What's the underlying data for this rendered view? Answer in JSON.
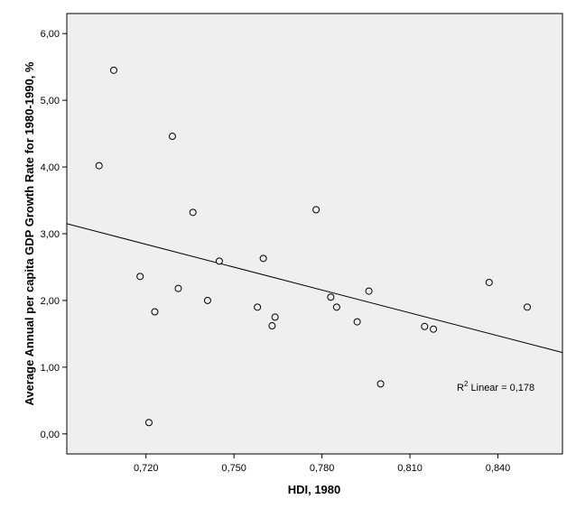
{
  "chart_data": {
    "type": "scatter",
    "xlabel": "HDI, 1980",
    "ylabel": "Average Annual per capita GDP Growth Rate for 1980-1990, %",
    "xlim": [
      0.693,
      0.862
    ],
    "ylim": [
      -0.3,
      6.3
    ],
    "x_ticks": [
      0.72,
      0.75,
      0.78,
      0.81,
      0.84
    ],
    "x_tick_labels": [
      "0,720",
      "0,750",
      "0,780",
      "0,810",
      "0,840"
    ],
    "y_ticks": [
      0,
      1,
      2,
      3,
      4,
      5,
      6
    ],
    "y_tick_labels": [
      "0,00",
      "1,00",
      "2,00",
      "3,00",
      "4,00",
      "5,00",
      "6,00"
    ],
    "grid": false,
    "plot_background": "#efefef",
    "points": [
      {
        "x": 0.704,
        "y": 4.02
      },
      {
        "x": 0.709,
        "y": 5.45
      },
      {
        "x": 0.718,
        "y": 2.36
      },
      {
        "x": 0.721,
        "y": 0.17
      },
      {
        "x": 0.723,
        "y": 1.83
      },
      {
        "x": 0.729,
        "y": 4.46
      },
      {
        "x": 0.731,
        "y": 2.18
      },
      {
        "x": 0.736,
        "y": 3.32
      },
      {
        "x": 0.741,
        "y": 2.0
      },
      {
        "x": 0.745,
        "y": 2.59
      },
      {
        "x": 0.758,
        "y": 1.9
      },
      {
        "x": 0.76,
        "y": 2.63
      },
      {
        "x": 0.763,
        "y": 1.62
      },
      {
        "x": 0.764,
        "y": 1.75
      },
      {
        "x": 0.778,
        "y": 3.36
      },
      {
        "x": 0.783,
        "y": 2.05
      },
      {
        "x": 0.785,
        "y": 1.9
      },
      {
        "x": 0.792,
        "y": 1.68
      },
      {
        "x": 0.796,
        "y": 2.14
      },
      {
        "x": 0.8,
        "y": 0.75
      },
      {
        "x": 0.815,
        "y": 1.61
      },
      {
        "x": 0.818,
        "y": 1.57
      },
      {
        "x": 0.837,
        "y": 2.27
      },
      {
        "x": 0.85,
        "y": 1.9
      }
    ],
    "fit_line": {
      "x": [
        0.693,
        0.862
      ],
      "y": [
        3.15,
        1.22
      ]
    },
    "annotation": {
      "text_prefix": "R",
      "text_sup": "2",
      "text_suffix": " Linear = 0,178",
      "x": 0.826,
      "y": 0.65
    }
  }
}
